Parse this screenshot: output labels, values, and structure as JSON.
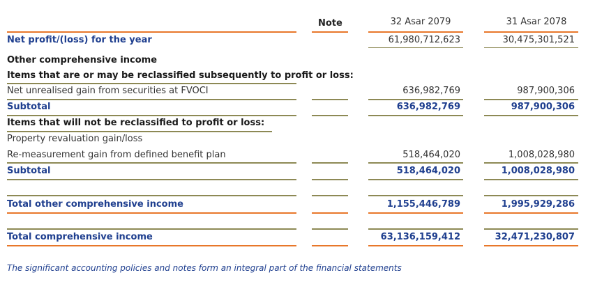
{
  "header": {
    "note": "Note",
    "year_current": "32 Asar 2079",
    "year_previous": "31 Asar 2078"
  },
  "rows": {
    "net_profit": {
      "label": "Net profit/(loss) for the year",
      "current": "61,980,712,623",
      "previous": "30,475,301,521"
    },
    "oci_heading": {
      "label": "Other comprehensive income"
    },
    "reclass_heading": {
      "label": "Items that are or may be reclassified subsequently to profit or loss:"
    },
    "fvoci": {
      "label": "Net unrealised gain from securities at FVOCI",
      "current": "636,982,769",
      "previous": "987,900,306"
    },
    "subtotal1": {
      "label": "Subtotal",
      "current": "636,982,769",
      "previous": "987,900,306"
    },
    "noreclass_heading": {
      "label": "Items that will not be reclassified to profit or loss:"
    },
    "revaluation": {
      "label": "Property revaluation gain/loss"
    },
    "remeasurement": {
      "label": "Re-measurement gain from defined benefit plan",
      "current": "518,464,020",
      "previous": "1,008,028,980"
    },
    "subtotal2": {
      "label": "Subtotal",
      "current": "518,464,020",
      "previous": "1,008,028,980"
    },
    "total_oci": {
      "label": "Total other comprehensive income",
      "current": "1,155,446,789",
      "previous": "1,995,929,286"
    },
    "total_ci": {
      "label": "Total comprehensive income",
      "current": "63,136,159,412",
      "previous": "32,471,230,807"
    }
  },
  "footer": {
    "note": "The significant accounting policies and notes form an integral part of the financial statements"
  },
  "colors": {
    "accent_orange": "#e8772a",
    "rule_olive": "#8d8955",
    "label_blue": "#1f3f8f"
  }
}
